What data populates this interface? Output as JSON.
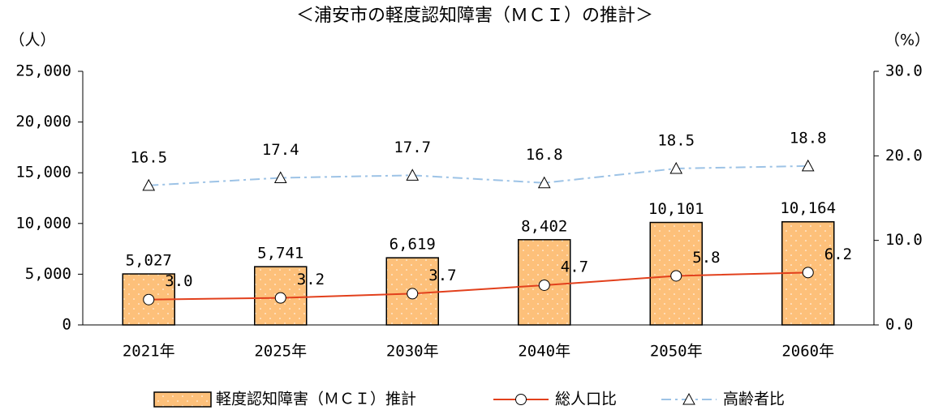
{
  "chart_data": {
    "type": "bar",
    "title": "＜浦安市の軽度認知障害（ＭＣＩ）の推計＞",
    "y_label": "（人）",
    "y2_label": "（%）",
    "categories": [
      "2021年",
      "2025年",
      "2030年",
      "2040年",
      "2050年",
      "2060年"
    ],
    "ylim": [
      0,
      25000
    ],
    "yticks": [
      0,
      {
        "value": 5000,
        "label": "5,000"
      },
      {
        "value": 10000,
        "label": "10,000"
      },
      {
        "value": 15000,
        "label": "15,000"
      },
      {
        "value": 20000,
        "label": "20,000"
      },
      {
        "value": 25000,
        "label": "25,000"
      }
    ],
    "y2lim": [
      0,
      30
    ],
    "y2ticks": [
      {
        "value": 0,
        "label": "0.0"
      },
      {
        "value": 10,
        "label": "10.0"
      },
      {
        "value": 20,
        "label": "20.0"
      },
      {
        "value": 30,
        "label": "30.0"
      }
    ],
    "legend": "bottom",
    "series": [
      {
        "name": "軽度認知障害（ＭＣＩ）推計",
        "type": "bar",
        "color": "#fdc07a",
        "values": [
          5027,
          5741,
          6619,
          8402,
          10101,
          10164
        ],
        "value_labels": [
          "5,027",
          "5,741",
          "6,619",
          "8,402",
          "10,101",
          "10,164"
        ]
      },
      {
        "name": "総人口比",
        "type": "line",
        "axis": "y2",
        "color": "#e2401c",
        "marker": "circle",
        "values": [
          3.0,
          3.2,
          3.7,
          4.7,
          5.8,
          6.2
        ],
        "value_labels": [
          "3.0",
          "3.2",
          "3.7",
          "4.7",
          "5.8",
          "6.2"
        ]
      },
      {
        "name": "高齢者比",
        "type": "line",
        "axis": "y2",
        "color": "#9dc3e6",
        "marker": "triangle",
        "dash": true,
        "values": [
          16.5,
          17.4,
          17.7,
          16.8,
          18.5,
          18.8
        ],
        "value_labels": [
          "16.5",
          "17.4",
          "17.7",
          "16.8",
          "18.5",
          "18.8"
        ]
      }
    ]
  }
}
